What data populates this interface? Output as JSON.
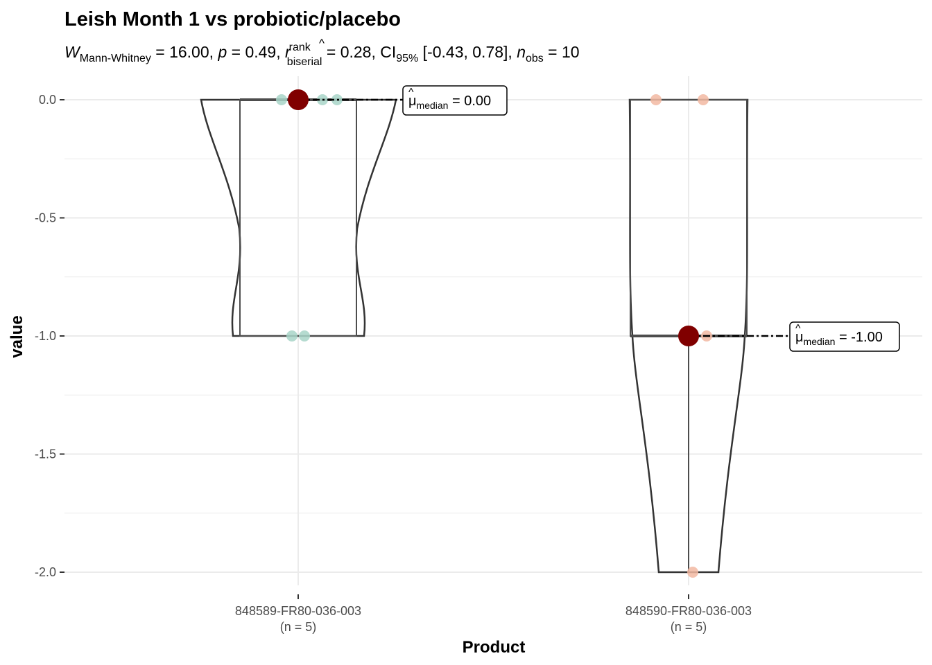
{
  "chart_data": {
    "type": "violin-box",
    "title": "Leish Month 1 vs probiotic/placebo",
    "subtitle": {
      "W": "W",
      "W_sub": "Mann-Whitney",
      "W_val": " = 16.00, ",
      "p": "p",
      "p_val": " = 0.49, ",
      "r": "r",
      "r_hat": "^",
      "r_sup": "rank",
      "r_sub": "biserial",
      "r_val": " = 0.28, ",
      "ci": "CI",
      "ci_sub": "95%",
      "ci_val": " [-0.43, 0.78], ",
      "n": "n",
      "n_sub": "obs",
      "n_val": " = 10"
    },
    "xlabel": "Product",
    "ylabel": "value",
    "ylim": [
      -2.15,
      0.12
    ],
    "yticks": [
      0.0,
      -0.5,
      -1.0,
      -1.5,
      -2.0
    ],
    "ytick_labels": [
      "0.0",
      "-0.5",
      "-1.0",
      "-1.5",
      "-2.0"
    ],
    "grid": true,
    "groups": [
      {
        "category": "848589-FR80-036-003",
        "n_label": "(n = 5)",
        "points": [
          0,
          0,
          0,
          -1,
          -1
        ],
        "point_color": "#a8d5c8",
        "median": 0.0,
        "box": {
          "q1": -1.0,
          "median": 0.0,
          "q3": 0.0,
          "min": -1.0,
          "max": 0.0
        },
        "median_label": {
          "mu": "μ",
          "hat": "^",
          "sub": "median",
          "val": " = 0.00"
        }
      },
      {
        "category": "848590-FR80-036-003",
        "n_label": "(n = 5)",
        "points": [
          0,
          0,
          -1,
          -1,
          -2
        ],
        "point_color": "#f2b9a2",
        "median": -1.0,
        "box": {
          "q1": -1.0,
          "median": -1.0,
          "q3": 0.0,
          "min": -2.0,
          "max": 0.0
        },
        "median_label": {
          "mu": "μ",
          "hat": "^",
          "sub": "median",
          "val": " = -1.00"
        }
      }
    ],
    "colors": {
      "median_dot": "#800000",
      "grid": "#ebebeb",
      "outline": "#333333"
    }
  }
}
